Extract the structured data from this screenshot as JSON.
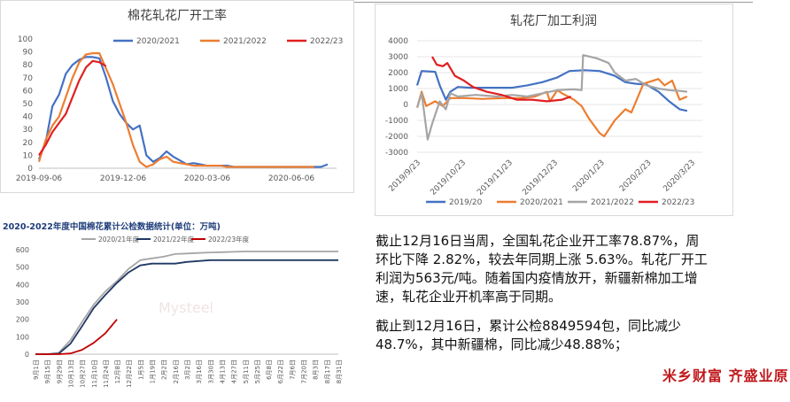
{
  "charts": [
    {
      "type": "line",
      "title": "棉花轧花厂开工率",
      "x": [
        "2019-09-06",
        "2019-12-06",
        "2020-03-06",
        "2020-06-06"
      ],
      "ylim": [
        0,
        100
      ],
      "yticks": [
        0,
        10,
        20,
        30,
        40,
        50,
        60,
        70,
        80,
        90,
        100
      ],
      "xlabel": "",
      "ylabel": "",
      "grid": false,
      "legend": "top",
      "series": [
        {
          "name": "2020/2021",
          "color": "#4472c4",
          "points": [
            [
              0,
              7
            ],
            [
              1,
              20
            ],
            [
              2,
              48
            ],
            [
              3,
              57
            ],
            [
              4,
              73
            ],
            [
              5,
              80
            ],
            [
              6,
              84
            ],
            [
              7,
              86
            ],
            [
              8,
              86
            ],
            [
              9,
              85
            ],
            [
              10,
              70
            ],
            [
              11,
              52
            ],
            [
              12,
              42
            ],
            [
              13,
              35
            ],
            [
              14,
              30
            ],
            [
              15,
              33
            ],
            [
              16,
              10
            ],
            [
              17,
              5
            ],
            [
              18,
              8
            ],
            [
              19,
              13
            ],
            [
              20,
              9
            ],
            [
              21,
              6
            ],
            [
              22,
              3
            ],
            [
              23,
              4
            ],
            [
              24,
              3
            ],
            [
              25,
              2
            ],
            [
              26,
              2
            ],
            [
              27,
              2
            ],
            [
              28,
              2
            ],
            [
              29,
              1
            ],
            [
              30,
              1
            ],
            [
              31,
              1
            ],
            [
              32,
              1
            ],
            [
              33,
              1
            ],
            [
              34,
              1
            ],
            [
              35,
              1
            ],
            [
              36,
              1
            ],
            [
              37,
              1
            ],
            [
              38,
              1
            ],
            [
              39,
              1
            ],
            [
              40,
              1
            ],
            [
              41,
              1
            ],
            [
              42,
              1
            ],
            [
              43,
              3
            ]
          ]
        },
        {
          "name": "2021/2022",
          "color": "#ed7d31",
          "points": [
            [
              0,
              5
            ],
            [
              1,
              22
            ],
            [
              2,
              33
            ],
            [
              3,
              40
            ],
            [
              4,
              55
            ],
            [
              5,
              70
            ],
            [
              6,
              82
            ],
            [
              7,
              88
            ],
            [
              8,
              89
            ],
            [
              9,
              89
            ],
            [
              10,
              77
            ],
            [
              11,
              65
            ],
            [
              12,
              50
            ],
            [
              13,
              35
            ],
            [
              14,
              18
            ],
            [
              15,
              5
            ],
            [
              16,
              1
            ],
            [
              17,
              3
            ],
            [
              18,
              7
            ],
            [
              19,
              9
            ],
            [
              20,
              5
            ],
            [
              21,
              4
            ],
            [
              22,
              3
            ],
            [
              23,
              2
            ],
            [
              24,
              2
            ],
            [
              25,
              2
            ],
            [
              26,
              2
            ],
            [
              27,
              2
            ],
            [
              28,
              1
            ],
            [
              29,
              1
            ],
            [
              30,
              1
            ],
            [
              31,
              1
            ],
            [
              32,
              1
            ],
            [
              33,
              1
            ],
            [
              34,
              1
            ],
            [
              35,
              1
            ],
            [
              36,
              1
            ],
            [
              37,
              1
            ],
            [
              38,
              1
            ],
            [
              39,
              1
            ],
            [
              40,
              1
            ],
            [
              41,
              1
            ]
          ]
        },
        {
          "name": "2022/23",
          "color": "#e02020",
          "points": [
            [
              0,
              10
            ],
            [
              1,
              18
            ],
            [
              2,
              28
            ],
            [
              3,
              35
            ],
            [
              4,
              42
            ],
            [
              5,
              55
            ],
            [
              6,
              68
            ],
            [
              7,
              78
            ],
            [
              8,
              83
            ],
            [
              9,
              82
            ],
            [
              10,
              79
            ]
          ]
        }
      ]
    },
    {
      "type": "line",
      "title": "轧花厂加工利润",
      "x": [
        "2019/9/23",
        "2019/10/23",
        "2019/11/23",
        "2019/12/23",
        "2020/1/23",
        "2020/2/23",
        "2020/3/23"
      ],
      "ylim": [
        -3000,
        4000
      ],
      "yticks": [
        -3000,
        -2000,
        -1000,
        0,
        1000,
        2000,
        3000,
        4000
      ],
      "xlabel": "",
      "ylabel": "",
      "grid": true,
      "legend": "bottom",
      "series": [
        {
          "name": "2019/20",
          "color": "#4472c4",
          "points": [
            [
              "2019-09-23",
              1200
            ],
            [
              "2019-09-26",
              2100
            ],
            [
              "2019-10-05",
              2050
            ],
            [
              "2019-10-08",
              1200
            ],
            [
              "2019-10-12",
              300
            ],
            [
              "2019-10-15",
              800
            ],
            [
              "2019-10-20",
              1100
            ],
            [
              "2019-10-28",
              1050
            ],
            [
              "2019-11-05",
              1050
            ],
            [
              "2019-11-15",
              1050
            ],
            [
              "2019-11-25",
              1050
            ],
            [
              "2019-12-05",
              1200
            ],
            [
              "2019-12-15",
              1400
            ],
            [
              "2019-12-25",
              1700
            ],
            [
              "2020-01-02",
              2100
            ],
            [
              "2020-01-12",
              2150
            ],
            [
              "2020-01-22",
              2100
            ],
            [
              "2020-02-01",
              1800
            ],
            [
              "2020-02-08",
              1400
            ],
            [
              "2020-02-15",
              1300
            ],
            [
              "2020-02-22",
              1250
            ],
            [
              "2020-03-01",
              800
            ],
            [
              "2020-03-08",
              200
            ],
            [
              "2020-03-15",
              -300
            ],
            [
              "2020-03-20",
              -400
            ]
          ]
        },
        {
          "name": "2020/2021",
          "color": "#ed7d31",
          "points": [
            [
              "2019-09-23",
              -200
            ],
            [
              "2019-09-26",
              800
            ],
            [
              "2019-09-29",
              -100
            ],
            [
              "2019-10-05",
              200
            ],
            [
              "2019-10-10",
              -100
            ],
            [
              "2019-10-15",
              400
            ],
            [
              "2019-10-25",
              400
            ],
            [
              "2019-11-05",
              350
            ],
            [
              "2019-11-20",
              400
            ],
            [
              "2019-12-01",
              400
            ],
            [
              "2019-12-10",
              500
            ],
            [
              "2019-12-18",
              800
            ],
            [
              "2019-12-20",
              200
            ],
            [
              "2019-12-25",
              900
            ],
            [
              "2019-12-28",
              700
            ],
            [
              "2020-01-05",
              300
            ],
            [
              "2020-01-10",
              -100
            ],
            [
              "2020-01-15",
              -900
            ],
            [
              "2020-01-22",
              -1800
            ],
            [
              "2020-01-25",
              -2000
            ],
            [
              "2020-02-01",
              -1000
            ],
            [
              "2020-02-08",
              -300
            ],
            [
              "2020-02-12",
              -500
            ],
            [
              "2020-02-20",
              1300
            ],
            [
              "2020-03-01",
              1600
            ],
            [
              "2020-03-05",
              1200
            ],
            [
              "2020-03-10",
              1500
            ],
            [
              "2020-03-15",
              300
            ],
            [
              "2020-03-20",
              500
            ]
          ]
        },
        {
          "name": "2021/2022",
          "color": "#a5a5a5",
          "points": [
            [
              "2019-09-23",
              -200
            ],
            [
              "2019-09-26",
              700
            ],
            [
              "2019-09-30",
              -2200
            ],
            [
              "2019-10-03",
              -1200
            ],
            [
              "2019-10-08",
              200
            ],
            [
              "2019-10-12",
              -300
            ],
            [
              "2019-10-15",
              700
            ],
            [
              "2019-10-20",
              500
            ],
            [
              "2019-11-01",
              600
            ],
            [
              "2019-11-15",
              500
            ],
            [
              "2019-11-25",
              600
            ],
            [
              "2019-12-05",
              500
            ],
            [
              "2019-12-15",
              700
            ],
            [
              "2019-12-25",
              900
            ],
            [
              "2020-01-05",
              950
            ],
            [
              "2020-01-10",
              900
            ],
            [
              "2020-01-11",
              3100
            ],
            [
              "2020-01-20",
              2900
            ],
            [
              "2020-01-28",
              2600
            ],
            [
              "2020-02-01",
              2000
            ],
            [
              "2020-02-08",
              1500
            ],
            [
              "2020-02-15",
              1600
            ],
            [
              "2020-02-22",
              1200
            ],
            [
              "2020-03-01",
              1000
            ],
            [
              "2020-03-08",
              900
            ],
            [
              "2020-03-15",
              850
            ],
            [
              "2020-03-20",
              800
            ]
          ]
        },
        {
          "name": "2022/23",
          "color": "#e02020",
          "points": [
            [
              "2019-10-03",
              3000
            ],
            [
              "2019-10-06",
              2500
            ],
            [
              "2019-10-10",
              2400
            ],
            [
              "2019-10-13",
              2600
            ],
            [
              "2019-10-18",
              1800
            ],
            [
              "2019-10-24",
              1500
            ],
            [
              "2019-10-30",
              1100
            ],
            [
              "2019-11-08",
              800
            ],
            [
              "2019-11-18",
              600
            ],
            [
              "2019-11-28",
              300
            ],
            [
              "2019-12-08",
              300
            ],
            [
              "2019-12-18",
              200
            ],
            [
              "2019-12-28",
              300
            ],
            [
              "2020-01-03",
              500
            ]
          ]
        }
      ]
    },
    {
      "type": "line",
      "title": "2020-2022年度中国棉花累计公检数据统计(单位：万吨)",
      "x": [
        "9月1日",
        "9月15日",
        "9月29日",
        "10月13日",
        "10月27日",
        "11月10日",
        "11月24日",
        "12月8日",
        "12月22日",
        "1月5日",
        "1月19日",
        "2月2日",
        "2月16日",
        "3月2日",
        "3月16日",
        "3月30日",
        "4月13日",
        "4月27日",
        "5月11日",
        "5月25日",
        "6月8日",
        "6月22日",
        "7月6日",
        "7月20日",
        "8月3日",
        "8月17日",
        "8月31日"
      ],
      "ylim": [
        0,
        600
      ],
      "yticks": [
        0,
        100,
        200,
        300,
        400,
        500,
        600
      ],
      "xlabel": "",
      "ylabel": "",
      "grid": false,
      "legend": "top",
      "series": [
        {
          "name": "2020/21年度",
          "color": "#a6a6a6",
          "values": [
            0,
            0,
            8,
            80,
            185,
            285,
            360,
            420,
            490,
            540,
            550,
            560,
            575,
            578,
            581,
            584,
            586,
            588,
            590,
            590,
            590,
            590,
            590,
            590,
            590,
            590,
            590
          ]
        },
        {
          "name": "2021/22年度",
          "color": "#1f3864",
          "values": [
            0,
            0,
            3,
            60,
            160,
            265,
            340,
            410,
            470,
            510,
            520,
            520,
            520,
            530,
            535,
            540,
            540,
            540,
            540,
            540,
            540,
            540,
            540,
            540,
            540,
            540,
            540
          ]
        },
        {
          "name": "2022/23年度",
          "color": "#c00000",
          "values": [
            0,
            0,
            0,
            4,
            25,
            65,
            120,
            200
          ]
        }
      ]
    }
  ],
  "summary": {
    "p1": "截止12月16日当周，全国轧花企业开工率78.87%，周环比下降 2.82%，较去年同期上涨 5.63%。轧花厂开工利润为563元/吨。随着国内疫情放开，新疆新棉加工增速，轧花企业开机率高于同期。",
    "p2": "截止到12月16日，累计公检8849594包，同比减少48.7%，其中新疆棉，同比减少48.88%；"
  },
  "brand": "米乡财富 齐盛业原",
  "watermark": "Mysteel",
  "colors": {
    "accent_red": "#c0191c"
  }
}
